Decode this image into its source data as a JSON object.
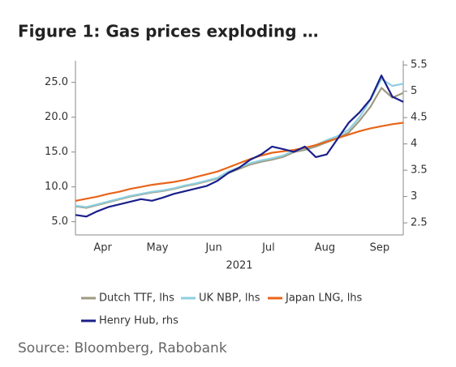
{
  "chart_data": {
    "type": "line",
    "title": "Figure 1: Gas prices exploding …",
    "xlabel": "2021",
    "source": "Source: Bloomberg, Rabobank",
    "x": [
      0,
      6,
      12,
      18,
      24,
      30,
      36,
      42,
      48,
      54,
      60,
      66,
      72,
      78,
      84,
      90,
      96,
      102,
      108,
      114,
      120,
      126,
      132,
      138,
      144,
      150,
      156,
      162,
      168,
      174,
      180
    ],
    "xlim": [
      0,
      180
    ],
    "xticks": [
      {
        "value": 15,
        "label": "Apr"
      },
      {
        "value": 45,
        "label": "May"
      },
      {
        "value": 76,
        "label": "Jun"
      },
      {
        "value": 106,
        "label": "Jul"
      },
      {
        "value": 137,
        "label": "Aug"
      },
      {
        "value": 167,
        "label": "Sep"
      }
    ],
    "ylim": [
      3.1,
      28.1
    ],
    "yticks": [
      {
        "value": 5,
        "label": "5.0"
      },
      {
        "value": 10,
        "label": "10.0"
      },
      {
        "value": 15,
        "label": "15.0"
      },
      {
        "value": 20,
        "label": "20.0"
      },
      {
        "value": 25,
        "label": "25.0"
      }
    ],
    "y2lim": [
      2.27,
      5.58
    ],
    "y2ticks": [
      2.5,
      3.0,
      3.5,
      4.0,
      4.5,
      5.0,
      5.5
    ],
    "series": [
      {
        "name": "Dutch TTF, lhs",
        "color": "#9e9a80",
        "values": [
          7.2,
          7.0,
          7.4,
          7.8,
          8.2,
          8.6,
          8.9,
          9.2,
          9.4,
          9.7,
          10.1,
          10.4,
          10.8,
          11.2,
          12.0,
          12.6,
          13.2,
          13.6,
          13.9,
          14.3,
          15.0,
          15.3,
          15.8,
          16.4,
          17.0,
          17.8,
          19.5,
          21.5,
          24.2,
          22.8,
          23.5
        ]
      },
      {
        "name": "UK NBP, lhs",
        "color": "#8ecfe0",
        "values": [
          7.3,
          7.1,
          7.5,
          7.9,
          8.3,
          8.7,
          9.0,
          9.3,
          9.5,
          9.8,
          10.2,
          10.5,
          10.9,
          11.3,
          12.2,
          12.8,
          13.4,
          13.8,
          14.1,
          14.5,
          15.2,
          15.5,
          16.0,
          16.7,
          17.3,
          18.2,
          20.0,
          22.5,
          25.5,
          24.5,
          24.8
        ]
      },
      {
        "name": "Japan LNG, lhs",
        "color": "#e8651a",
        "values": [
          8.0,
          8.3,
          8.6,
          9.0,
          9.3,
          9.7,
          10.0,
          10.3,
          10.5,
          10.7,
          11.0,
          11.4,
          11.8,
          12.2,
          12.8,
          13.4,
          14.0,
          14.5,
          14.9,
          15.1,
          15.3,
          15.6,
          16.0,
          16.5,
          17.0,
          17.5,
          18.0,
          18.4,
          18.7,
          19.0,
          19.2
        ]
      },
      {
        "name": "Henry Hub, rhs",
        "color": "#1a1f8a",
        "axis": "y2",
        "values": [
          2.65,
          2.62,
          2.72,
          2.8,
          2.85,
          2.9,
          2.95,
          2.92,
          2.98,
          3.05,
          3.1,
          3.15,
          3.2,
          3.3,
          3.45,
          3.55,
          3.7,
          3.8,
          3.95,
          3.9,
          3.85,
          3.95,
          3.75,
          3.8,
          4.1,
          4.4,
          4.6,
          4.85,
          5.3,
          4.9,
          4.8
        ]
      }
    ]
  }
}
